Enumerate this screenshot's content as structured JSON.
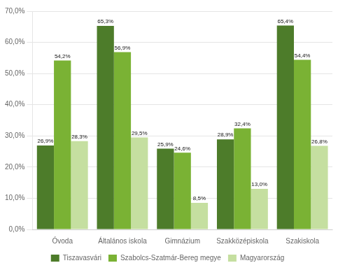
{
  "chart_data": {
    "type": "bar",
    "categories": [
      "Óvoda",
      "Általános iskola",
      "Gimnázium",
      "Szakközépiskola",
      "Szakiskola"
    ],
    "series": [
      {
        "name": "Tiszavasvári",
        "color": "#4d7c2a",
        "values": [
          26.9,
          65.3,
          25.9,
          28.9,
          65.4
        ],
        "value_labels": [
          "26,9%",
          "65,3%",
          "25,9%",
          "28,9%",
          "65,4%"
        ]
      },
      {
        "name": "Szabolcs-Szatmár-Bereg megye",
        "color": "#7ab234",
        "values": [
          54.2,
          56.9,
          24.6,
          32.4,
          54.4
        ],
        "value_labels": [
          "54,2%",
          "56,9%",
          "24,6%",
          "32,4%",
          "54,4%"
        ]
      },
      {
        "name": "Magyarország",
        "color": "#c5dfa0",
        "values": [
          28.3,
          29.5,
          8.5,
          13.0,
          26.8
        ],
        "value_labels": [
          "28,3%",
          "29,5%",
          "8,5%",
          "13,0%",
          "26,8%"
        ]
      }
    ],
    "ylim": [
      0,
      70
    ],
    "yticks": [
      {
        "value": 0,
        "label": "0,0%"
      },
      {
        "value": 10,
        "label": "10,0%"
      },
      {
        "value": 20,
        "label": "20,0%"
      },
      {
        "value": 30,
        "label": "30,0%"
      },
      {
        "value": 40,
        "label": "40,0%"
      },
      {
        "value": 50,
        "label": "50,0%"
      },
      {
        "value": 60,
        "label": "60,0%"
      },
      {
        "value": 70,
        "label": "70,0%"
      }
    ],
    "grid": true,
    "legend": "bottom",
    "data_labels": true
  }
}
